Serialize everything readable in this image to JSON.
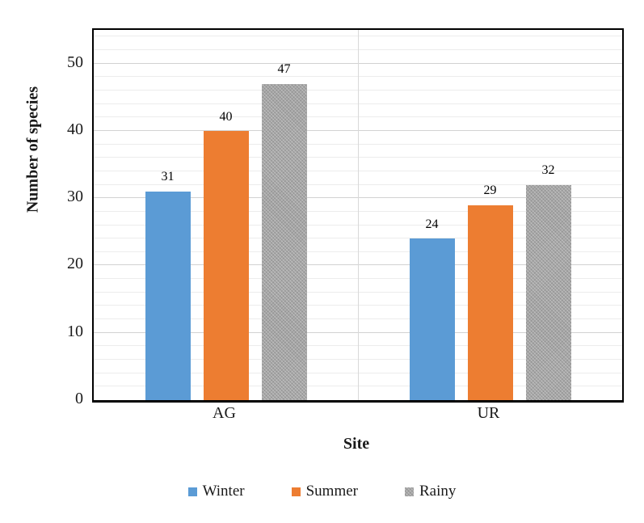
{
  "chart_data": {
    "type": "bar",
    "title": "",
    "categories": [
      "AG",
      "UR"
    ],
    "series": [
      {
        "name": "Winter",
        "color": "#5B9BD5",
        "pattern": "solid",
        "values": [
          31,
          24
        ]
      },
      {
        "name": "Summer",
        "color": "#ED7D31",
        "pattern": "solid",
        "values": [
          40,
          29
        ]
      },
      {
        "name": "Rainy",
        "color": "#A6A6A6",
        "pattern": "speckled",
        "values": [
          47,
          32
        ]
      }
    ],
    "data_labels": [
      [
        "31",
        "40",
        "47"
      ],
      [
        "24",
        "29",
        "32"
      ]
    ],
    "xlabel": "Site",
    "ylabel": "Number of species",
    "ylim": [
      0,
      55
    ],
    "yticks": [
      0,
      10,
      20,
      30,
      40,
      50
    ],
    "minor_unit": 2,
    "major_unit": 10,
    "grid": "horizontal-minor-and-major-plus-category-boundary",
    "legend_position": "bottom",
    "plot_border_color": "#000000",
    "gridline_major_color": "#d2d2d2",
    "gridline_minor_color": "#ececec",
    "text_color": "#1a1a1a"
  }
}
